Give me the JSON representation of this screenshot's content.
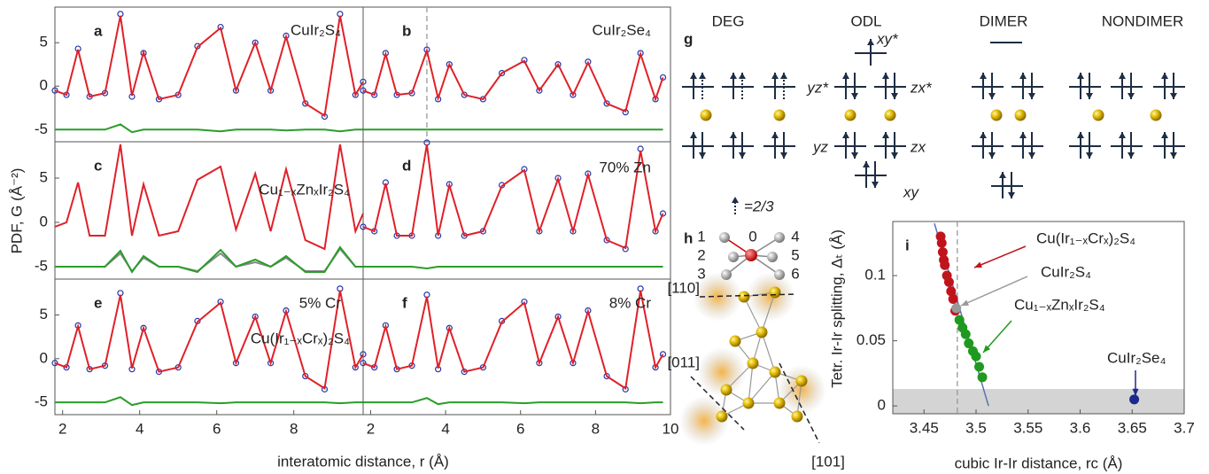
{
  "figure": {
    "y_label": "PDF, G (Å⁻²)",
    "x_label": "interatomic distance, r (Å)"
  },
  "chart_data": [
    {
      "type": "line",
      "panel_label": "a",
      "annotations": [
        "CuIr₂S₄"
      ],
      "x": [
        1.8,
        2.1,
        2.4,
        2.7,
        3.1,
        3.5,
        3.8,
        4.1,
        4.5,
        5.0,
        5.5,
        6.1,
        6.5,
        7.0,
        7.4,
        7.8,
        8.3,
        8.8,
        9.2,
        9.6,
        9.8
      ],
      "xlim": [
        1.8,
        9.8
      ],
      "ylim": [
        -6.4,
        9.1
      ],
      "yticks": [
        -5,
        0,
        5
      ],
      "series": [
        {
          "color": "#2436a8",
          "marker": "circle",
          "values": [
            -0.5,
            -1.0,
            4.3,
            -1.2,
            -0.8,
            8.3,
            -1.2,
            3.8,
            -1.5,
            -1.0,
            4.6,
            6.8,
            -0.5,
            5.0,
            -0.5,
            5.8,
            -2.0,
            -3.5,
            8.3,
            -1.0,
            0.5
          ]
        },
        {
          "color": "#e02028",
          "values": [
            -0.5,
            -1.0,
            4.2,
            -1.2,
            -0.8,
            8.1,
            -1.1,
            3.9,
            -1.5,
            -1.0,
            4.5,
            6.7,
            -0.5,
            5.0,
            -0.5,
            5.7,
            -2.0,
            -3.4,
            8.1,
            -1.0,
            0.5
          ]
        },
        {
          "color": "#2a9d2a",
          "values": [
            -5,
            -5,
            -5,
            -5,
            -5,
            -4.4,
            -5.3,
            -5,
            -5,
            -5,
            -5,
            -5.2,
            -5,
            -5,
            -5,
            -5.1,
            -5,
            -5,
            -5.2,
            -5,
            -5
          ]
        }
      ]
    },
    {
      "type": "line",
      "panel_label": "b",
      "annotations": [
        "CuIr₂Se₄"
      ],
      "vline": 3.5,
      "x": [
        1.8,
        2.1,
        2.4,
        2.7,
        3.1,
        3.5,
        3.8,
        4.1,
        4.5,
        5.0,
        5.5,
        6.1,
        6.5,
        7.0,
        7.4,
        7.8,
        8.3,
        8.8,
        9.2,
        9.6,
        9.8
      ],
      "xlim": [
        1.8,
        10
      ],
      "ylim": [
        -6.4,
        9.1
      ],
      "series": [
        {
          "color": "#2436a8",
          "marker": "circle",
          "values": [
            -0.5,
            -1.0,
            3.8,
            -1.0,
            -0.8,
            4.2,
            -1.5,
            2.5,
            -1.0,
            -1.5,
            1.5,
            3.0,
            -0.5,
            2.5,
            -1.0,
            2.8,
            -2.0,
            -3.0,
            3.8,
            -1.5,
            1.0
          ]
        },
        {
          "color": "#e02028",
          "values": [
            -0.5,
            -1.0,
            3.7,
            -1.0,
            -0.8,
            4.1,
            -1.4,
            2.5,
            -1.0,
            -1.5,
            1.5,
            2.9,
            -0.5,
            2.5,
            -1.0,
            2.7,
            -2.0,
            -2.9,
            3.7,
            -1.5,
            1.0
          ]
        },
        {
          "color": "#2a9d2a",
          "values": [
            -5,
            -5,
            -5,
            -5,
            -5,
            -5,
            -5,
            -5,
            -5,
            -5,
            -5,
            -5,
            -5,
            -5,
            -5,
            -5,
            -5,
            -5,
            -5,
            -5,
            -5
          ]
        }
      ]
    },
    {
      "type": "line",
      "panel_label": "c",
      "annotations": [
        "Cu₁₋ₓZnₓIr₂S₄"
      ],
      "x": [
        1.8,
        2.1,
        2.4,
        2.7,
        3.1,
        3.5,
        3.8,
        4.1,
        4.5,
        5.0,
        5.5,
        6.1,
        6.5,
        7.0,
        7.4,
        7.8,
        8.3,
        8.8,
        9.2,
        9.6,
        9.8
      ],
      "xlim": [
        1.8,
        9.8
      ],
      "ylim": [
        -6.4,
        9.1
      ],
      "yticks": [
        -5,
        0,
        5
      ],
      "series": [
        {
          "color": "#e02028",
          "values": [
            -0.5,
            0.0,
            4.5,
            -1.5,
            -1.5,
            8.8,
            -1.5,
            4.3,
            -1.5,
            -1.0,
            4.8,
            6.3,
            -0.8,
            5.5,
            -1.0,
            6.0,
            -2.0,
            -3.0,
            8.8,
            -1.0,
            1.0
          ]
        },
        {
          "color": "#888888",
          "values": [
            -5,
            -5,
            -5,
            -5,
            -5,
            -3.5,
            -5.5,
            -4,
            -5,
            -5,
            -5.5,
            -3.5,
            -5,
            -4.5,
            -5,
            -4,
            -5.5,
            -5.5,
            -3,
            -5,
            -5
          ]
        },
        {
          "color": "#2a9d2a",
          "values": [
            -5,
            -5,
            -5,
            -5,
            -5,
            -3.2,
            -5.6,
            -3.8,
            -5,
            -5,
            -5.6,
            -3.1,
            -5,
            -4.2,
            -5,
            -3.8,
            -5.6,
            -5.6,
            -2.8,
            -5,
            -5
          ]
        }
      ]
    },
    {
      "type": "line",
      "panel_label": "d",
      "annotations": [
        "70% Zn"
      ],
      "x": [
        1.8,
        2.1,
        2.4,
        2.7,
        3.1,
        3.5,
        3.8,
        4.1,
        4.5,
        5.0,
        5.5,
        6.1,
        6.5,
        7.0,
        7.4,
        7.8,
        8.3,
        8.8,
        9.2,
        9.6,
        9.8
      ],
      "xlim": [
        1.8,
        10
      ],
      "ylim": [
        -6.4,
        9.1
      ],
      "series": [
        {
          "color": "#2436a8",
          "marker": "circle",
          "values": [
            -0.5,
            -1.0,
            4.5,
            -1.5,
            -1.5,
            9.0,
            -1.5,
            4.3,
            -1.5,
            -1.0,
            4.2,
            6.0,
            -1.0,
            5.0,
            -1.0,
            5.5,
            -2.0,
            -3.0,
            8.3,
            -1.0,
            1.0
          ]
        },
        {
          "color": "#e02028",
          "values": [
            -0.5,
            -1.0,
            4.4,
            -1.5,
            -1.5,
            8.8,
            -1.5,
            4.2,
            -1.5,
            -1.0,
            4.1,
            5.9,
            -1.0,
            4.9,
            -1.0,
            5.4,
            -2.0,
            -2.9,
            8.1,
            -1.0,
            1.0
          ]
        },
        {
          "color": "#2a9d2a",
          "values": [
            -5,
            -5,
            -5,
            -5,
            -5,
            -5.2,
            -5,
            -5,
            -5,
            -5,
            -5,
            -5,
            -5,
            -5,
            -5,
            -5,
            -5,
            -5,
            -5,
            -5,
            -5
          ]
        }
      ]
    },
    {
      "type": "line",
      "panel_label": "e",
      "annotations": [
        "5% Cr",
        "Cu(Ir₁₋ₓCrₓ)₂S₄"
      ],
      "x": [
        1.8,
        2.1,
        2.4,
        2.7,
        3.1,
        3.5,
        3.8,
        4.1,
        4.5,
        5.0,
        5.5,
        6.1,
        6.5,
        7.0,
        7.4,
        7.8,
        8.3,
        8.8,
        9.2,
        9.6,
        9.8
      ],
      "xlim": [
        1.8,
        9.8
      ],
      "ylim": [
        -6.4,
        9.1
      ],
      "yticks": [
        -5,
        0,
        5
      ],
      "xticks": [
        2,
        4,
        6,
        8
      ],
      "series": [
        {
          "color": "#2436a8",
          "marker": "circle",
          "values": [
            -0.5,
            -1.0,
            3.8,
            -1.2,
            -0.8,
            7.5,
            -1.2,
            3.5,
            -1.5,
            -1.0,
            4.3,
            6.5,
            -0.5,
            4.8,
            -0.5,
            5.5,
            -2.0,
            -3.5,
            8.0,
            -1.0,
            0.5
          ]
        },
        {
          "color": "#e02028",
          "values": [
            -0.5,
            -1.0,
            3.7,
            -1.2,
            -0.8,
            7.3,
            -1.1,
            3.5,
            -1.5,
            -1.0,
            4.2,
            6.4,
            -0.5,
            4.8,
            -0.5,
            5.4,
            -2.0,
            -3.4,
            7.8,
            -1.0,
            0.5
          ]
        },
        {
          "color": "#2a9d2a",
          "values": [
            -5,
            -5,
            -5,
            -5,
            -5,
            -4.4,
            -5.3,
            -5,
            -5,
            -5,
            -5,
            -5.1,
            -5,
            -5,
            -5,
            -5,
            -5,
            -5,
            -5.1,
            -5,
            -5
          ]
        }
      ]
    },
    {
      "type": "line",
      "panel_label": "f",
      "annotations": [
        "8% Cr"
      ],
      "x": [
        1.8,
        2.1,
        2.4,
        2.7,
        3.1,
        3.5,
        3.8,
        4.1,
        4.5,
        5.0,
        5.5,
        6.1,
        6.5,
        7.0,
        7.4,
        7.8,
        8.3,
        8.8,
        9.2,
        9.6,
        9.8
      ],
      "xlim": [
        1.8,
        10
      ],
      "ylim": [
        -6.4,
        9.1
      ],
      "xticks": [
        2,
        4,
        6,
        8,
        10
      ],
      "series": [
        {
          "color": "#2436a8",
          "marker": "circle",
          "values": [
            -0.5,
            -1.0,
            3.8,
            -1.2,
            -0.8,
            7.3,
            -1.2,
            3.5,
            -1.5,
            -1.0,
            4.3,
            6.5,
            -0.5,
            4.8,
            -0.5,
            5.5,
            -2.0,
            -3.5,
            8.0,
            -1.0,
            0.5
          ]
        },
        {
          "color": "#e02028",
          "values": [
            -0.5,
            -1.0,
            3.7,
            -1.2,
            -0.8,
            7.1,
            -1.1,
            3.5,
            -1.5,
            -1.0,
            4.2,
            6.4,
            -0.5,
            4.8,
            -0.5,
            5.4,
            -2.0,
            -3.4,
            7.8,
            -1.0,
            0.5
          ]
        },
        {
          "color": "#2a9d2a",
          "values": [
            -5,
            -5,
            -5,
            -5,
            -5,
            -4.5,
            -5.2,
            -5,
            -5,
            -5,
            -5,
            -5.1,
            -5,
            -5,
            -5,
            -5,
            -5,
            -5,
            -5.1,
            -5,
            -5
          ]
        }
      ]
    },
    {
      "type": "scatter",
      "panel_label": "i",
      "x_label": "cubic Ir-Ir distance, rc (Å)",
      "y_label": "Tetr. Ir-Ir splitting, Δₜ (Å)",
      "xlim": [
        3.42,
        3.7
      ],
      "ylim": [
        -0.006,
        0.1415
      ],
      "xticks": [
        3.45,
        3.5,
        3.55,
        3.6,
        3.65,
        3.7
      ],
      "yticks": [
        0,
        0.05,
        0.1
      ],
      "shaded_below": 0.013,
      "vline": 3.482,
      "fit_line": {
        "x": [
          3.46,
          3.512
        ],
        "values": [
          0.14,
          0
        ]
      },
      "series": [
        {
          "name": "Cu(Ir₁₋ₓCrₓ)₂S₄",
          "color": "#c0141c",
          "x": [
            3.466,
            3.467,
            3.468,
            3.469,
            3.47,
            3.472,
            3.474,
            3.476,
            3.478,
            3.48
          ],
          "values": [
            0.13,
            0.125,
            0.118,
            0.112,
            0.108,
            0.1,
            0.095,
            0.088,
            0.082,
            0.073
          ]
        },
        {
          "name": "CuIr₂S₄",
          "color": "#999999",
          "x": [
            3.481
          ],
          "values": [
            0.075
          ]
        },
        {
          "name": "Cu₁₋ₓZnₓIr₂S₄",
          "color": "#1f9a1f",
          "x": [
            3.484,
            3.487,
            3.49,
            3.493,
            3.497,
            3.5,
            3.503,
            3.506
          ],
          "values": [
            0.066,
            0.06,
            0.055,
            0.048,
            0.042,
            0.038,
            0.03,
            0.022
          ]
        },
        {
          "name": "CuIr₂Se₄",
          "color": "#1c2a8a",
          "x": [
            3.652
          ],
          "values": [
            0.005
          ]
        }
      ]
    }
  ],
  "diagram_g": {
    "label": "g",
    "columns": [
      "DEG",
      "ODL",
      "DIMER",
      "NONDIMER"
    ],
    "orbitals": [
      "xy*",
      "yz*",
      "zx*",
      "yz",
      "zx",
      "xy"
    ],
    "note": "=2/3"
  },
  "diagram_h": {
    "label": "h",
    "sites": [
      "1",
      "0",
      "4",
      "2",
      "5",
      "3",
      "6"
    ],
    "directions": [
      "[110]",
      "[011]",
      "[101]"
    ]
  }
}
